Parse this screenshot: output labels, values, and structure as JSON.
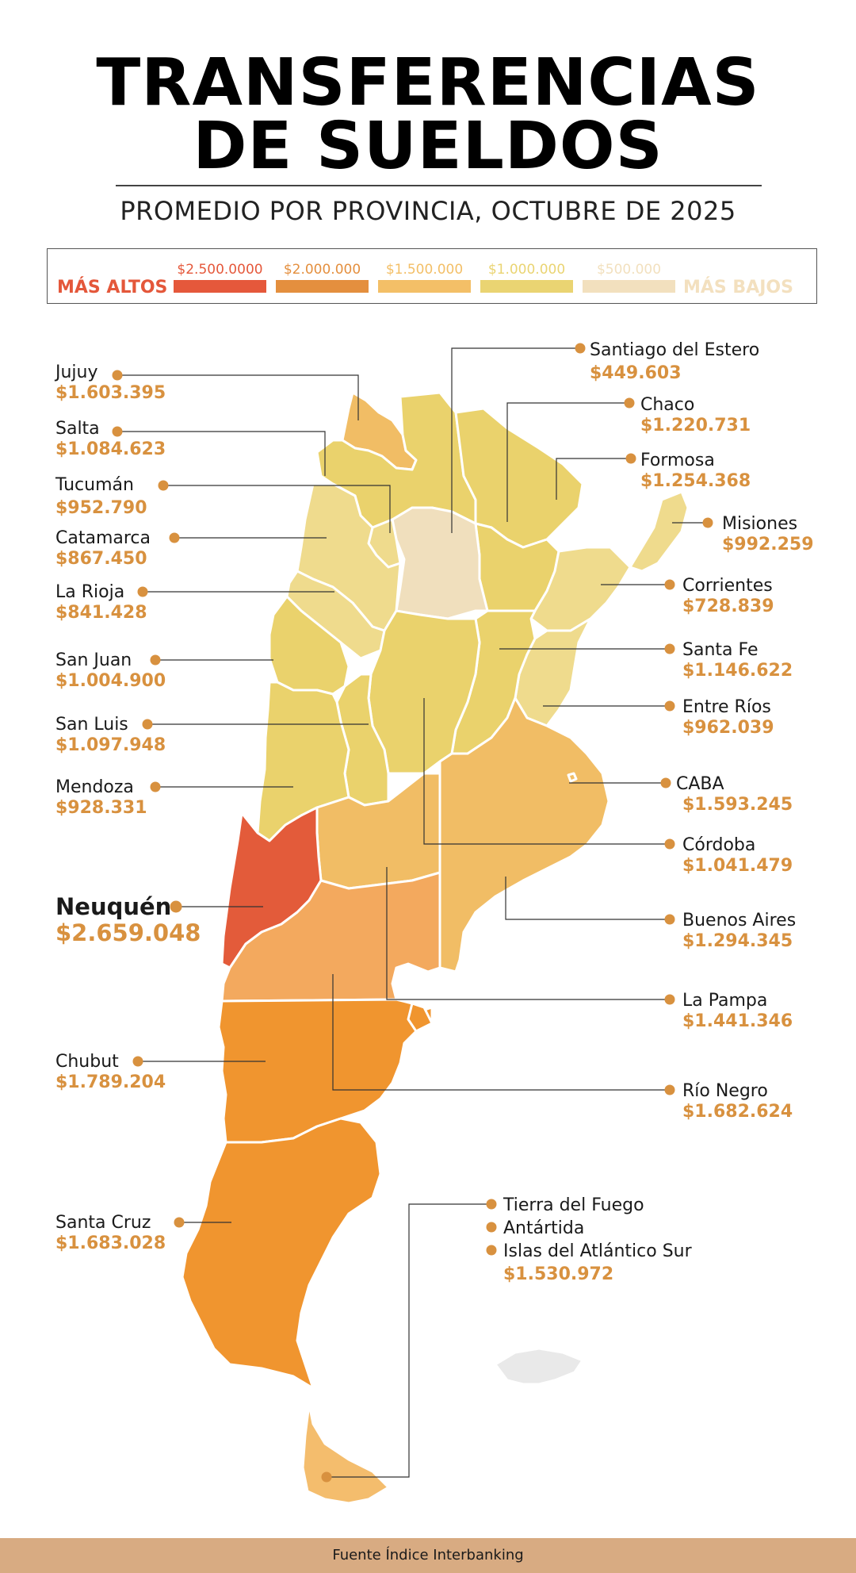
{
  "header": {
    "title_line1": "TRANSFERENCIAS",
    "title_line2": "DE SUELDOS",
    "subtitle": "PROMEDIO POR PROVINCIA, OCTUBRE DE 2025"
  },
  "legend": {
    "high_label": "MÁS ALTOS",
    "low_label": "MÁS BAJOS",
    "high_color": "#e4573a",
    "low_color": "#f3e0bf",
    "items": [
      {
        "label": "$2.500.0000",
        "color": "#e5583b"
      },
      {
        "label": "$2.000.000",
        "color": "#e48f3e"
      },
      {
        "label": "$1.500.000",
        "color": "#f3bf67"
      },
      {
        "label": "$1.000.000",
        "color": "#ead472"
      },
      {
        "label": "$500.000",
        "color": "#f2e0be"
      }
    ]
  },
  "colors": {
    "accent_value": "#d8913f",
    "dot": "#d8913f",
    "leader_line": "#333333",
    "footer_bg": "#d8ab82"
  },
  "provinces": {
    "jujuy": {
      "name": "Jujuy",
      "value": "$1.603.395"
    },
    "salta": {
      "name": "Salta",
      "value": "$1.084.623"
    },
    "tucuman": {
      "name": "Tucumán",
      "value": "$952.790"
    },
    "catamarca": {
      "name": "Catamarca",
      "value": "$867.450"
    },
    "la_rioja": {
      "name": "La Rioja",
      "value": "$841.428"
    },
    "san_juan": {
      "name": "San Juan",
      "value": "$1.004.900"
    },
    "san_luis": {
      "name": "San Luis",
      "value": "$1.097.948"
    },
    "mendoza": {
      "name": "Mendoza",
      "value": "$928.331"
    },
    "neuquen": {
      "name": "Neuquén",
      "value": "$2.659.048"
    },
    "chubut": {
      "name": "Chubut",
      "value": "$1.789.204"
    },
    "santa_cruz": {
      "name": "Santa Cruz",
      "value": "$1.683.028"
    },
    "santiago": {
      "name": "Santiago del Estero",
      "value": "$449.603"
    },
    "chaco": {
      "name": "Chaco",
      "value": "$1.220.731"
    },
    "formosa": {
      "name": "Formosa",
      "value": "$1.254.368"
    },
    "misiones": {
      "name": "Misiones",
      "value": "$992.259"
    },
    "corrientes": {
      "name": "Corrientes",
      "value": "$728.839"
    },
    "santa_fe": {
      "name": "Santa Fe",
      "value": "$1.146.622"
    },
    "entre_rios": {
      "name": "Entre Ríos",
      "value": "$962.039"
    },
    "caba": {
      "name": "CABA",
      "value": "$1.593.245"
    },
    "cordoba": {
      "name": "Córdoba",
      "value": "$1.041.479"
    },
    "buenos_aires": {
      "name": "Buenos Aires",
      "value": "$1.294.345"
    },
    "la_pampa": {
      "name": "La Pampa",
      "value": "$1.441.346"
    },
    "rio_negro": {
      "name": "Río Negro",
      "value": "$1.682.624"
    },
    "tierra_del_fuego": {
      "name": "Tierra del Fuego",
      "name2": "Antártida",
      "name3": "Islas del Atlántico Sur",
      "value": "$1.530.972"
    }
  },
  "footer": {
    "source": "Fuente Índice Interbanking"
  }
}
